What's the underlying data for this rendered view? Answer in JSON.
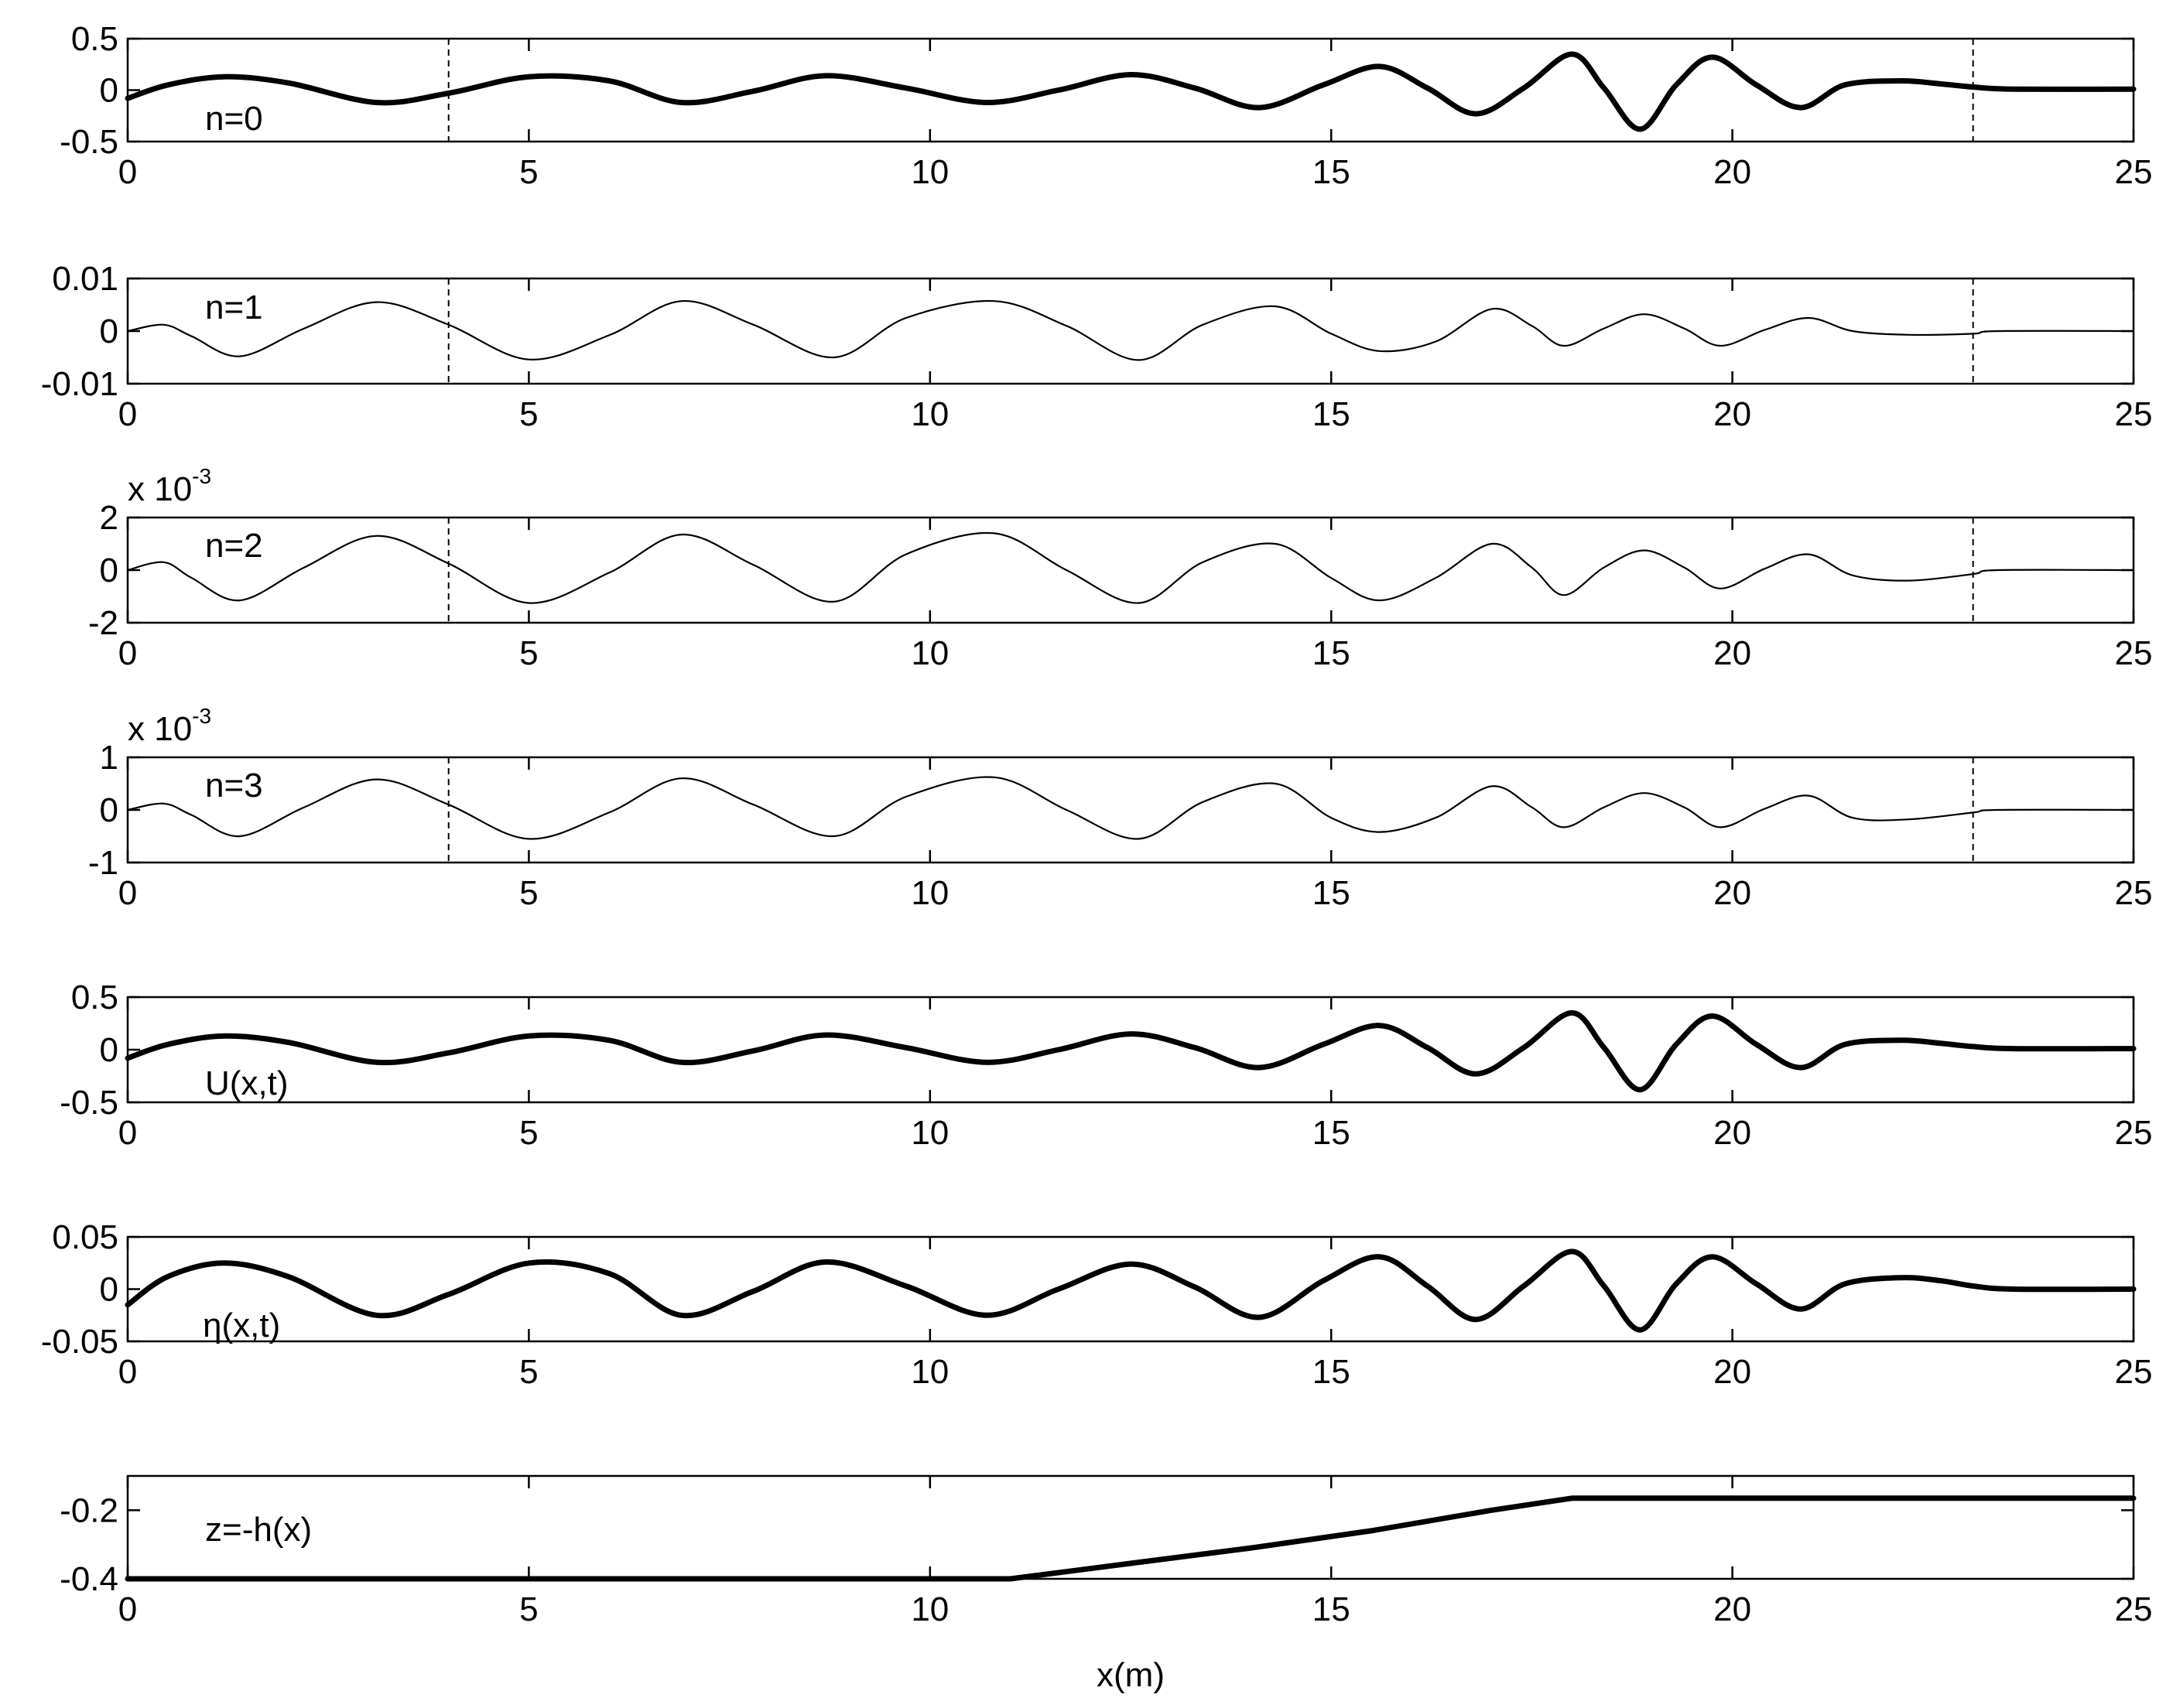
{
  "xlabel": "x(m)",
  "chart_data": [
    {
      "type": "line",
      "label": "n=0",
      "xlim": [
        0,
        25
      ],
      "ylim": [
        -0.5,
        0.5
      ],
      "xticks": [
        "0",
        "5",
        "10",
        "15",
        "20",
        "25"
      ],
      "yticks": [
        "0.5",
        "0",
        "-0.5"
      ],
      "series": [
        {
          "line_weight": "thick",
          "x": [
            0,
            0.5,
            1.2,
            2.0,
            3.1,
            4.0,
            5.0,
            6.0,
            6.9,
            7.8,
            8.7,
            9.7,
            10.7,
            11.6,
            12.5,
            13.3,
            14.1,
            14.9,
            15.6,
            16.2,
            16.8,
            17.4,
            18.0,
            18.4,
            18.85,
            19.3,
            19.75,
            20.3,
            20.85,
            21.4,
            22.1,
            22.6,
            23.0,
            23.5,
            25.0
          ],
          "y": [
            -0.08,
            0.05,
            0.13,
            0.07,
            -0.12,
            -0.03,
            0.13,
            0.09,
            -0.12,
            -0.01,
            0.14,
            0.02,
            -0.12,
            0.0,
            0.15,
            0.02,
            -0.17,
            0.05,
            0.23,
            0.02,
            -0.23,
            0.02,
            0.35,
            0.02,
            -0.38,
            0.05,
            0.32,
            0.05,
            -0.17,
            0.05,
            0.09,
            0.06,
            0.03,
            0.01,
            0.01
          ]
        }
      ],
      "vlines_dashed": [
        4.0,
        23.0
      ]
    },
    {
      "type": "line",
      "label": "n=1",
      "xlim": [
        0,
        25
      ],
      "ylim": [
        -0.01,
        0.01
      ],
      "xticks": [
        "0",
        "5",
        "10",
        "15",
        "20",
        "25"
      ],
      "yticks": [
        "0.01",
        "0",
        "-0.01"
      ],
      "series": [
        {
          "line_weight": "thin",
          "x": [
            0,
            0.45,
            0.8,
            1.4,
            2.2,
            3.1,
            4.0,
            5.0,
            6.0,
            6.9,
            7.8,
            8.8,
            9.7,
            10.8,
            11.7,
            12.6,
            13.4,
            14.3,
            15.0,
            15.6,
            16.3,
            17.0,
            17.5,
            17.9,
            18.4,
            18.9,
            19.4,
            19.85,
            20.4,
            20.95,
            21.5,
            22.2,
            23.0,
            23.3,
            25.0
          ],
          "y": [
            0.0,
            0.0012,
            -0.001,
            -0.0048,
            0.0005,
            0.0055,
            0.0012,
            -0.0054,
            -0.0008,
            0.0057,
            0.0012,
            -0.005,
            0.0025,
            0.0057,
            0.001,
            -0.0055,
            0.0012,
            0.0047,
            -0.0005,
            -0.0038,
            -0.002,
            0.0042,
            0.001,
            -0.0028,
            0.0005,
            0.0032,
            0.0005,
            -0.0028,
            0.0002,
            0.0025,
            0.0,
            -0.0007,
            -0.0005,
            0.0,
            0.0
          ]
        }
      ],
      "vlines_dashed": [
        4.0,
        23.0
      ]
    },
    {
      "type": "line",
      "label": "n=2",
      "xlim": [
        0,
        25
      ],
      "ylim": [
        -2,
        2
      ],
      "y_multiplier": "x 10",
      "y_multiplier_exp": "-3",
      "xticks": [
        "0",
        "5",
        "10",
        "15",
        "20",
        "25"
      ],
      "yticks": [
        "2",
        "0",
        "-2"
      ],
      "series": [
        {
          "line_weight": "thin",
          "x": [
            0,
            0.45,
            0.8,
            1.4,
            2.2,
            3.1,
            4.0,
            5.0,
            6.0,
            6.9,
            7.8,
            8.8,
            9.7,
            10.8,
            11.7,
            12.6,
            13.4,
            14.3,
            15.0,
            15.6,
            16.3,
            17.0,
            17.5,
            17.9,
            18.4,
            18.9,
            19.4,
            19.85,
            20.4,
            20.95,
            21.5,
            22.2,
            23.0,
            23.3,
            25.0
          ],
          "y": [
            0.0,
            0.3,
            -0.3,
            -1.15,
            0.1,
            1.3,
            0.25,
            -1.25,
            -0.1,
            1.35,
            0.2,
            -1.2,
            0.6,
            1.4,
            0.0,
            -1.25,
            0.3,
            1.0,
            -0.3,
            -1.15,
            -0.3,
            1.0,
            0.1,
            -0.95,
            0.1,
            0.75,
            0.1,
            -0.7,
            0.05,
            0.6,
            -0.2,
            -0.4,
            -0.15,
            0.0,
            0.0
          ]
        }
      ],
      "vlines_dashed": [
        4.0,
        23.0
      ]
    },
    {
      "type": "line",
      "label": "n=3",
      "xlim": [
        0,
        25
      ],
      "ylim": [
        -1,
        1
      ],
      "y_multiplier": "x 10",
      "y_multiplier_exp": "-3",
      "xticks": [
        "0",
        "5",
        "10",
        "15",
        "20",
        "25"
      ],
      "yticks": [
        "1",
        "0",
        "-1"
      ],
      "series": [
        {
          "line_weight": "thin",
          "x": [
            0,
            0.45,
            0.8,
            1.4,
            2.2,
            3.1,
            4.0,
            5.0,
            6.0,
            6.9,
            7.8,
            8.8,
            9.7,
            10.8,
            11.7,
            12.6,
            13.4,
            14.3,
            15.0,
            15.6,
            16.3,
            17.0,
            17.5,
            17.9,
            18.4,
            18.9,
            19.4,
            19.85,
            20.4,
            20.95,
            21.5,
            22.2,
            23.0,
            23.3,
            25.0
          ],
          "y": [
            0.0,
            0.12,
            -0.1,
            -0.5,
            0.05,
            0.58,
            0.1,
            -0.55,
            -0.05,
            0.6,
            0.1,
            -0.5,
            0.25,
            0.62,
            0.0,
            -0.55,
            0.15,
            0.5,
            -0.15,
            -0.42,
            -0.15,
            0.45,
            0.05,
            -0.33,
            0.05,
            0.32,
            0.05,
            -0.33,
            0.02,
            0.27,
            -0.15,
            -0.18,
            -0.05,
            0.0,
            0.0
          ]
        }
      ],
      "vlines_dashed": [
        4.0,
        23.0
      ]
    },
    {
      "type": "line",
      "label": "U(x,t)",
      "xlim": [
        0,
        25
      ],
      "ylim": [
        -0.5,
        0.5
      ],
      "xticks": [
        "0",
        "5",
        "10",
        "15",
        "20",
        "25"
      ],
      "yticks": [
        "0.5",
        "0",
        "-0.5"
      ],
      "series": [
        {
          "line_weight": "thick",
          "x": [
            0,
            0.5,
            1.2,
            2.0,
            3.1,
            4.0,
            5.0,
            6.0,
            6.9,
            7.8,
            8.7,
            9.7,
            10.7,
            11.6,
            12.5,
            13.3,
            14.1,
            14.9,
            15.6,
            16.2,
            16.8,
            17.4,
            18.0,
            18.4,
            18.85,
            19.3,
            19.75,
            20.3,
            20.85,
            21.4,
            22.1,
            22.6,
            23.0,
            23.5,
            25.0
          ],
          "y": [
            -0.08,
            0.05,
            0.13,
            0.07,
            -0.12,
            -0.03,
            0.13,
            0.09,
            -0.12,
            -0.01,
            0.14,
            0.02,
            -0.12,
            0.0,
            0.15,
            0.02,
            -0.17,
            0.05,
            0.23,
            0.02,
            -0.23,
            0.02,
            0.35,
            0.02,
            -0.38,
            0.05,
            0.32,
            0.05,
            -0.17,
            0.05,
            0.09,
            0.06,
            0.03,
            0.01,
            0.01
          ]
        }
      ],
      "vlines_dashed": []
    },
    {
      "type": "line",
      "label": "η(x,t)",
      "xlim": [
        0,
        25
      ],
      "ylim": [
        -0.05,
        0.05
      ],
      "xticks": [
        "0",
        "5",
        "10",
        "15",
        "20",
        "25"
      ],
      "yticks": [
        "0.05",
        "0",
        "-0.05"
      ],
      "series": [
        {
          "line_weight": "thick",
          "x": [
            0,
            0.5,
            1.2,
            2.0,
            3.1,
            4.0,
            5.0,
            6.0,
            6.9,
            7.8,
            8.7,
            9.7,
            10.7,
            11.6,
            12.5,
            13.3,
            14.1,
            14.9,
            15.6,
            16.2,
            16.8,
            17.4,
            18.0,
            18.4,
            18.85,
            19.3,
            19.75,
            20.3,
            20.85,
            21.4,
            22.1,
            22.6,
            23.0,
            23.5,
            25.0
          ],
          "y": [
            -0.015,
            0.012,
            0.025,
            0.012,
            -0.025,
            -0.005,
            0.025,
            0.015,
            -0.025,
            -0.002,
            0.026,
            0.003,
            -0.025,
            0.0,
            0.024,
            0.002,
            -0.027,
            0.008,
            0.031,
            0.003,
            -0.029,
            0.003,
            0.036,
            0.003,
            -0.039,
            0.005,
            0.031,
            0.005,
            -0.019,
            0.005,
            0.011,
            0.008,
            0.003,
            0.0,
            0.0
          ]
        }
      ],
      "vlines_dashed": []
    },
    {
      "type": "line",
      "label": "z=-h(x)",
      "xlim": [
        0,
        25
      ],
      "ylim": [
        -0.4,
        -0.1
      ],
      "xticks": [
        "0",
        "5",
        "10",
        "15",
        "20",
        "25"
      ],
      "yticks": [
        "-0.2",
        "-0.4"
      ],
      "series": [
        {
          "line_weight": "thick",
          "x": [
            0,
            11.0,
            12.5,
            14.0,
            15.5,
            17.0,
            18.0,
            25.0
          ],
          "y": [
            -0.4,
            -0.4,
            -0.355,
            -0.31,
            -0.26,
            -0.2,
            -0.165,
            -0.165
          ]
        }
      ],
      "vlines_dashed": []
    }
  ]
}
